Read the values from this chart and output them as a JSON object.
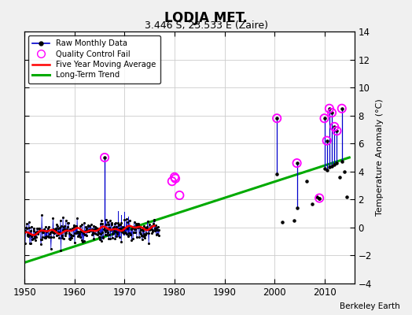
{
  "title": "LODJA MET.",
  "subtitle": "3.446 S, 23.533 E (Zaire)",
  "credit": "Berkeley Earth",
  "ylabel": "Temperature Anomaly (°C)",
  "xlim": [
    1950,
    2016
  ],
  "ylim": [
    -4,
    14
  ],
  "yticks": [
    -4,
    -2,
    0,
    2,
    4,
    6,
    8,
    10,
    12,
    14
  ],
  "xticks": [
    1950,
    1960,
    1970,
    1980,
    1990,
    2000,
    2010
  ],
  "bg_color": "#f0f0f0",
  "plot_bg": "#ffffff",
  "raw_color": "#0000cc",
  "dot_color": "#000000",
  "qc_color": "#ff00ff",
  "ma_color": "#ff0000",
  "trend_color": "#00aa00",
  "trend": {
    "x": [
      1950,
      2015
    ],
    "y": [
      -2.5,
      5.0
    ]
  },
  "qc_fail": {
    "x": [
      1966.0,
      1979.5,
      1980.0,
      1980.17,
      1981.0,
      2000.5,
      2004.5,
      2009.0,
      2010.0,
      2010.5,
      2011.0,
      2011.5,
      2012.0,
      2012.5,
      2013.5
    ],
    "y": [
      5.0,
      3.3,
      3.6,
      3.5,
      2.3,
      7.8,
      4.6,
      2.1,
      7.8,
      6.2,
      8.5,
      8.2,
      7.2,
      6.9,
      8.5
    ]
  },
  "sparse_lines": {
    "x": [
      2000.5,
      2004.5,
      2009.0,
      2010.0,
      2010.5,
      2011.0,
      2011.5,
      2012.0,
      2012.5,
      2013.5
    ],
    "y_top": [
      7.8,
      4.6,
      2.1,
      7.8,
      6.2,
      8.5,
      8.2,
      7.2,
      6.9,
      8.5
    ],
    "y_bot": [
      3.8,
      1.4,
      2.1,
      4.2,
      4.1,
      4.3,
      4.4,
      4.5,
      4.6,
      4.7
    ]
  },
  "extra_dots": {
    "x": [
      2001.5,
      2004.0,
      2006.5,
      2007.5,
      2008.5,
      2013.0,
      2014.0,
      2014.5
    ],
    "y": [
      0.4,
      0.5,
      3.3,
      1.7,
      2.2,
      3.6,
      4.0,
      2.2
    ]
  }
}
